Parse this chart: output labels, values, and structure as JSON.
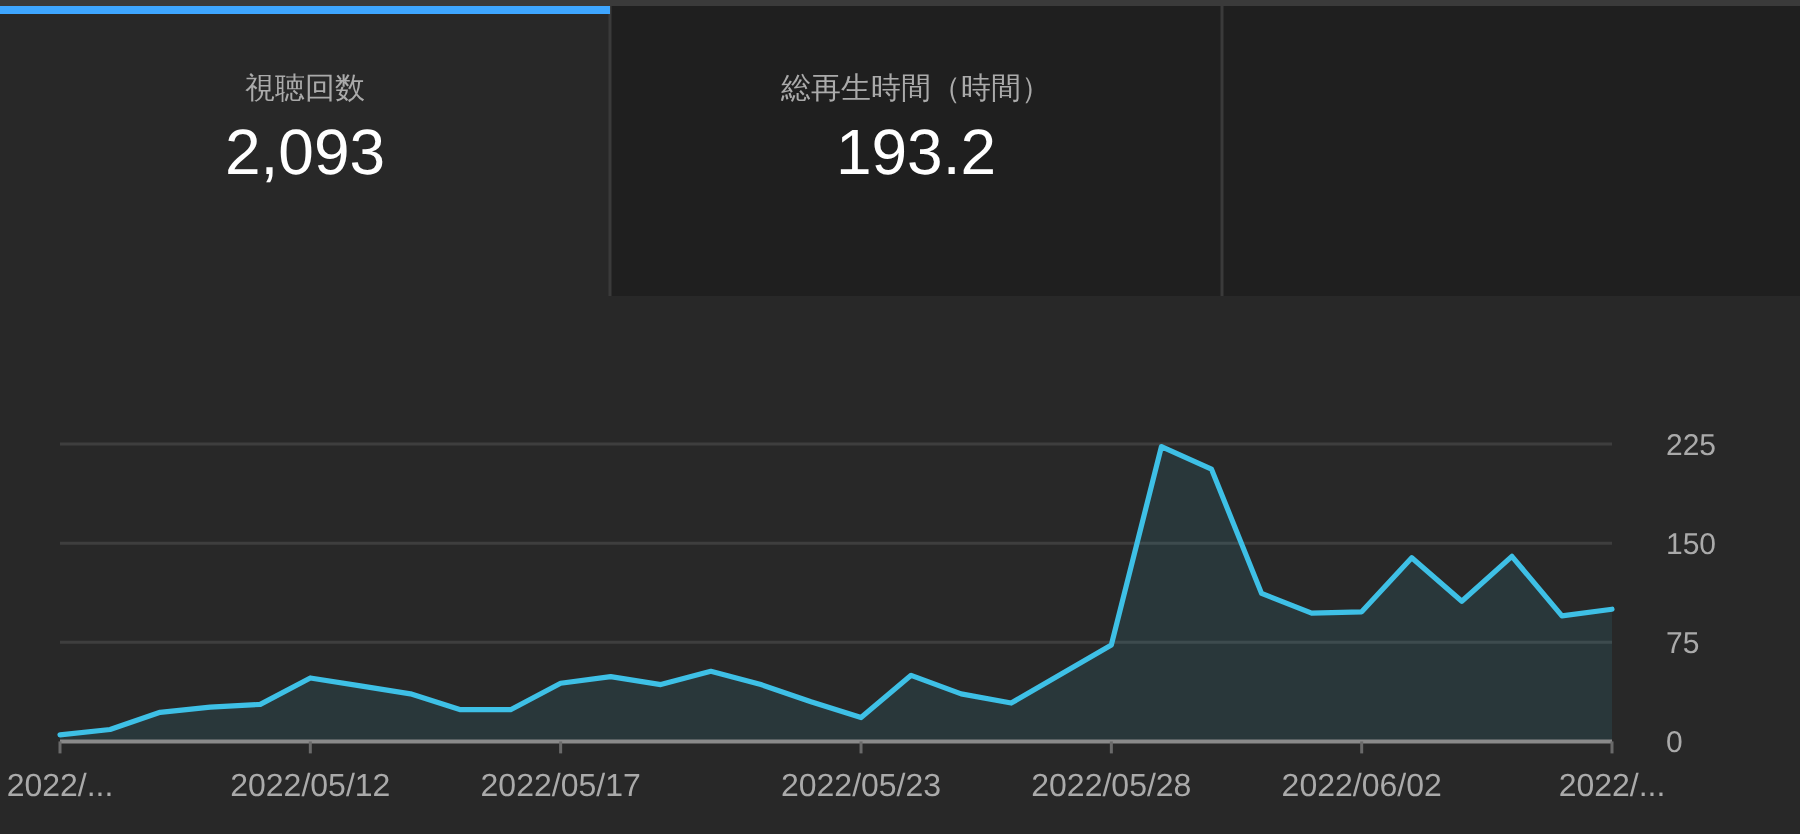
{
  "chart_data": [
    {
      "type": "other",
      "annotations": [
        "視聴回数",
        "2,093",
        "総再生時間（時間）",
        "193.2"
      ]
    },
    {
      "type": "area",
      "x": [
        "2022-05-07",
        "2022-05-08",
        "2022-05-09",
        "2022-05-10",
        "2022-05-11",
        "2022-05-12",
        "2022-05-13",
        "2022-05-14",
        "2022-05-15",
        "2022-05-16",
        "2022-05-17",
        "2022-05-18",
        "2022-05-19",
        "2022-05-20",
        "2022-05-21",
        "2022-05-22",
        "2022-05-23",
        "2022-05-24",
        "2022-05-25",
        "2022-05-26",
        "2022-05-27",
        "2022-05-28",
        "2022-05-29",
        "2022-05-30",
        "2022-05-31",
        "2022-06-01",
        "2022-06-02",
        "2022-06-03",
        "2022-06-04",
        "2022-06-05",
        "2022-06-06",
        "2022-06-07"
      ],
      "values": [
        5,
        9,
        22,
        26,
        28,
        48,
        42,
        36,
        24,
        24,
        44,
        49,
        43,
        53,
        43,
        30,
        18,
        50,
        36,
        29,
        51,
        73,
        223,
        206,
        112,
        97,
        98,
        139,
        106,
        140,
        95,
        100
      ],
      "color": "#3ec0e6",
      "xlim": [
        "2022-05-07",
        "2022-06-07"
      ],
      "xticks": [
        {
          "value": "2022-05-07",
          "label": "2022/..."
        },
        {
          "value": "2022-05-12",
          "label": "2022/05/12"
        },
        {
          "value": "2022-05-17",
          "label": "2022/05/17"
        },
        {
          "value": "2022-05-23",
          "label": "2022/05/23"
        },
        {
          "value": "2022-05-28",
          "label": "2022/05/28"
        },
        {
          "value": "2022-06-02",
          "label": "2022/06/02"
        },
        {
          "value": "2022-06-07",
          "label": "2022/..."
        }
      ],
      "ylim": [
        0,
        225
      ],
      "yticks": [
        0,
        75,
        150,
        225
      ],
      "grid": "y"
    }
  ]
}
